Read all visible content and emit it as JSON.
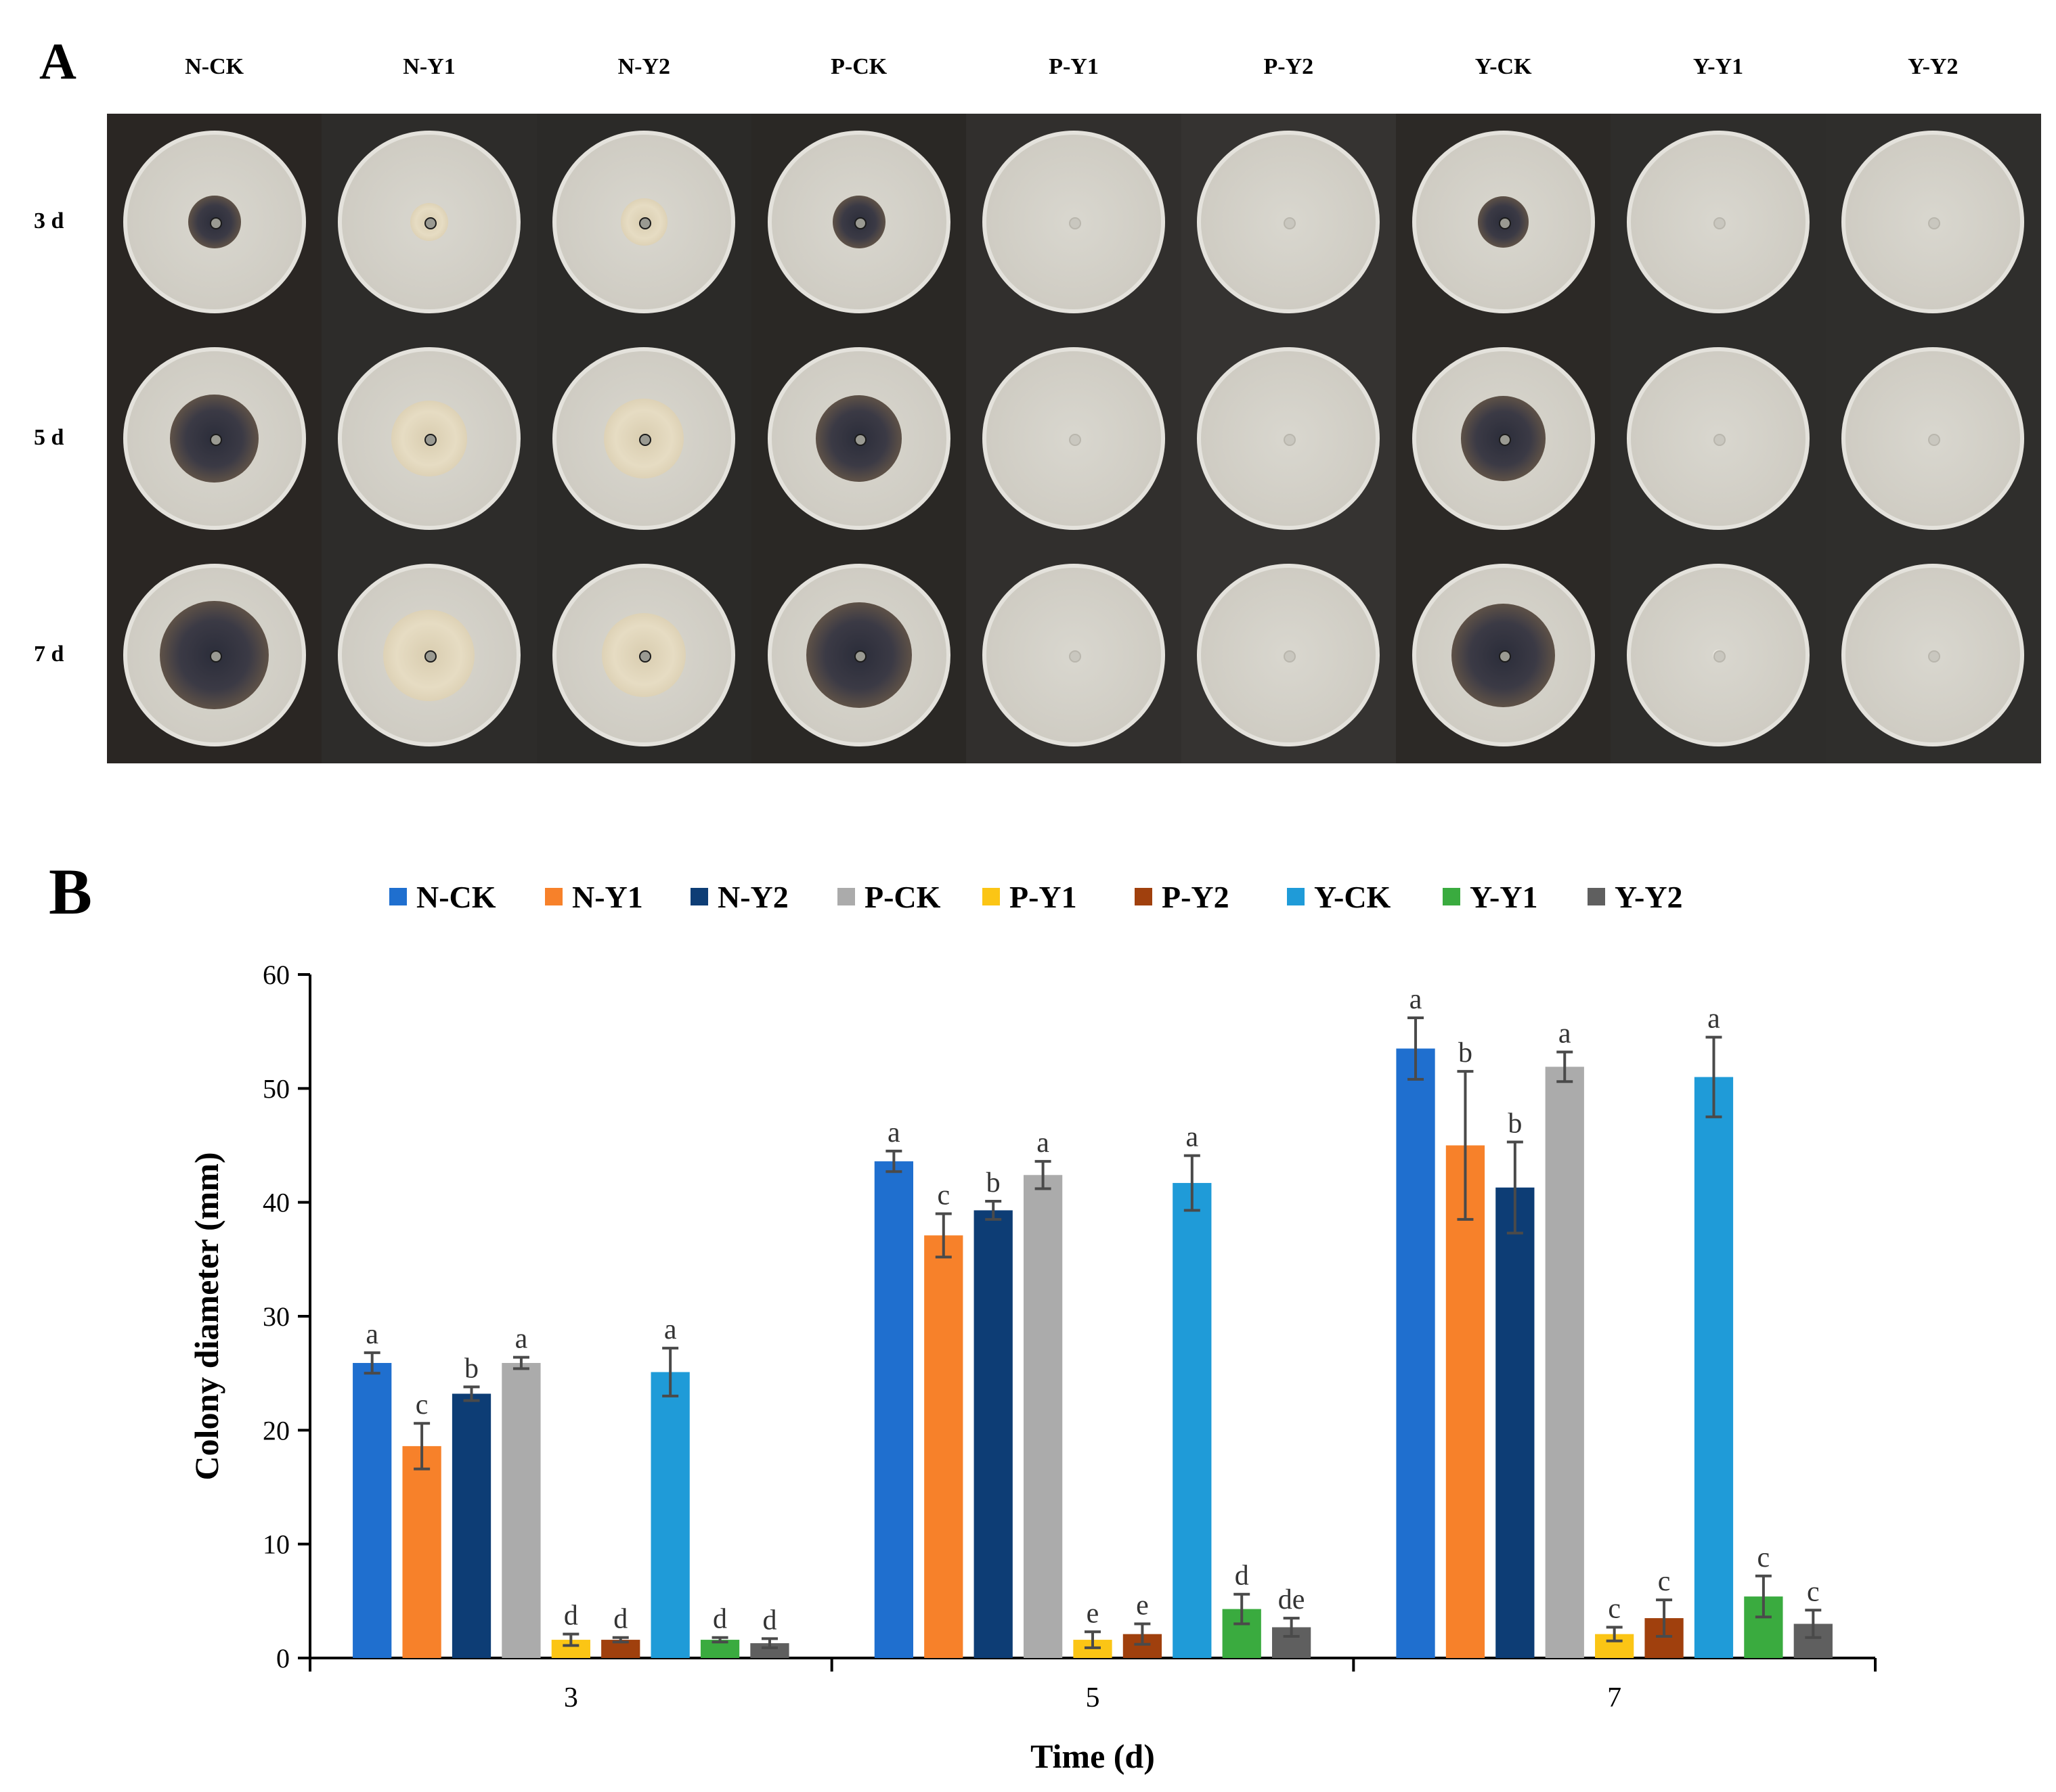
{
  "panel_a": {
    "label": "A",
    "columns": [
      "N-CK",
      "N-Y1",
      "N-Y2",
      "P-CK",
      "P-Y1",
      "P-Y2",
      "Y-CK",
      "Y-Y1",
      "Y-Y2"
    ],
    "rows": [
      "3 d",
      "5 d",
      "7 d"
    ],
    "photo_description_hidden": false
  },
  "panel_b": {
    "label": "B"
  },
  "colors": {
    "N-CK": "#1f6fcf",
    "N-Y1": "#f7812a",
    "N-Y2": "#0d3d75",
    "P-CK": "#ababab",
    "P-Y1": "#fbc515",
    "P-Y2": "#a0400d",
    "Y-CK": "#1f9bd8",
    "Y-Y1": "#3aab3f",
    "Y-Y2": "#5f5f5f"
  },
  "chart_data": {
    "type": "bar",
    "title": "",
    "xlabel": "Time (d)",
    "ylabel": "Colony diameter (mm)",
    "ylim": [
      0,
      60
    ],
    "yticks": [
      0,
      10,
      20,
      30,
      40,
      50,
      60
    ],
    "categories": [
      "3",
      "5",
      "7"
    ],
    "legend_position": "top",
    "series": [
      {
        "name": "N-CK",
        "values": [
          25.9,
          43.6,
          53.5
        ],
        "errors": [
          0.9,
          0.9,
          2.7
        ],
        "letters": [
          "a",
          "a",
          "a"
        ]
      },
      {
        "name": "N-Y1",
        "values": [
          18.6,
          37.1,
          45.0
        ],
        "errors": [
          2.0,
          1.9,
          6.5
        ],
        "letters": [
          "c",
          "c",
          "b"
        ]
      },
      {
        "name": "N-Y2",
        "values": [
          23.2,
          39.3,
          41.3
        ],
        "errors": [
          0.6,
          0.8,
          4.0
        ],
        "letters": [
          "b",
          "b",
          "b"
        ]
      },
      {
        "name": "P-CK",
        "values": [
          25.9,
          42.4,
          51.9
        ],
        "errors": [
          0.5,
          1.2,
          1.3
        ],
        "letters": [
          "a",
          "a",
          "a"
        ]
      },
      {
        "name": "P-Y1",
        "values": [
          1.6,
          1.6,
          2.1
        ],
        "errors": [
          0.5,
          0.7,
          0.6
        ],
        "letters": [
          "d",
          "e",
          "c"
        ]
      },
      {
        "name": "P-Y2",
        "values": [
          1.6,
          2.1,
          3.5
        ],
        "errors": [
          0.2,
          0.9,
          1.6
        ],
        "letters": [
          "d",
          "e",
          "c"
        ]
      },
      {
        "name": "Y-CK",
        "values": [
          25.1,
          41.7,
          51.0
        ],
        "errors": [
          2.1,
          2.4,
          3.5
        ],
        "letters": [
          "a",
          "a",
          "a"
        ]
      },
      {
        "name": "Y-Y1",
        "values": [
          1.6,
          4.3,
          5.4
        ],
        "errors": [
          0.2,
          1.3,
          1.8
        ],
        "letters": [
          "d",
          "d",
          "c"
        ]
      },
      {
        "name": "Y-Y2",
        "values": [
          1.3,
          2.7,
          3.0
        ],
        "errors": [
          0.4,
          0.8,
          1.2
        ],
        "letters": [
          "d",
          "de",
          "c"
        ]
      }
    ]
  }
}
